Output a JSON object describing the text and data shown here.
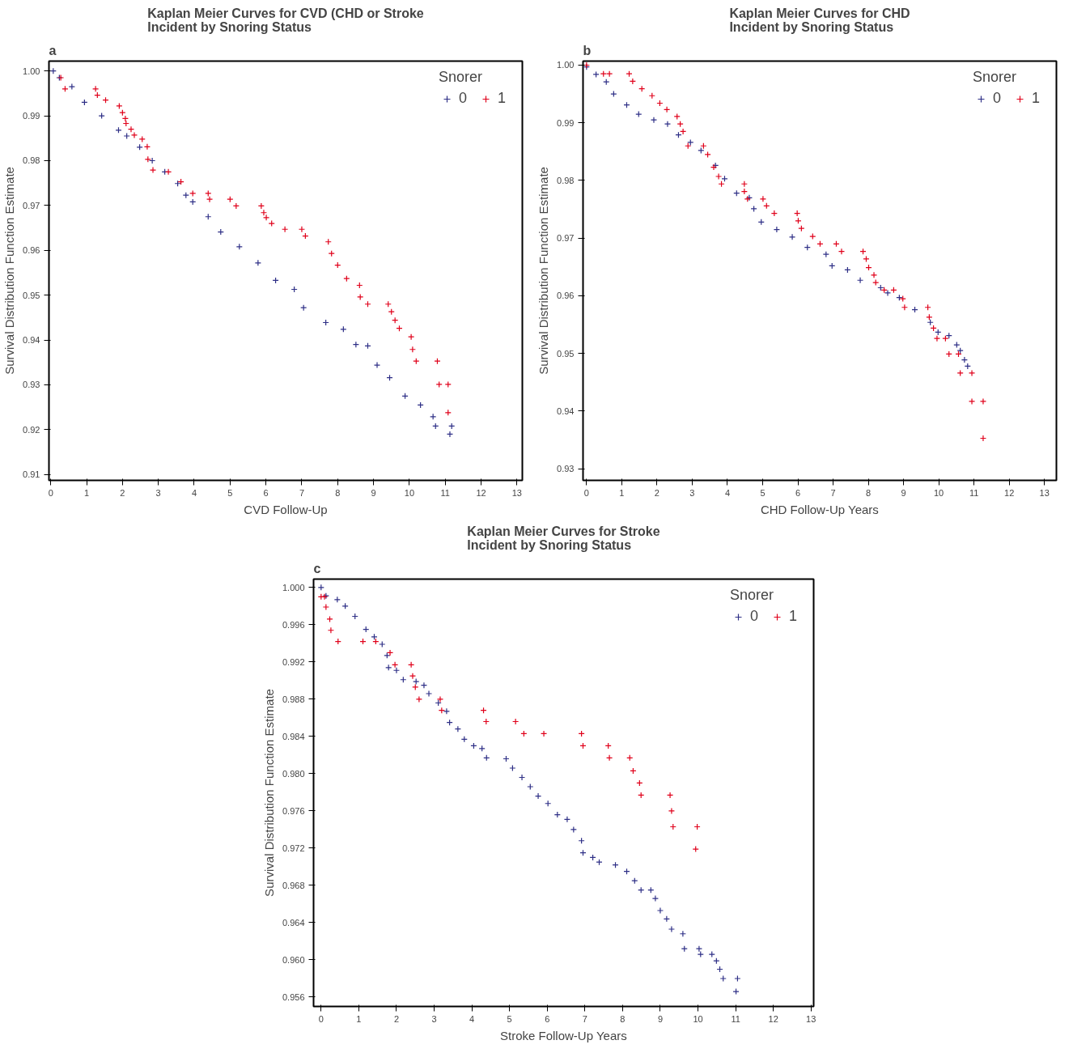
{
  "chart_data": [
    {
      "type": "scatter",
      "title": "Kaplan Meier Curves for CVD (CHD or Stroke\nIncident by Snoring Status",
      "annotations": [
        "a"
      ],
      "xlabel": "CVD Follow-Up",
      "ylabel": "Survival Distribution Function Estimate",
      "legend_title": "Snorer",
      "legend": "top right",
      "grid": false,
      "marker": "cross",
      "xlim": [
        -0.05,
        13.15
      ],
      "ylim": [
        0.9087,
        1.0022
      ],
      "xticks": [
        0,
        1,
        2,
        3,
        4,
        5,
        6,
        7,
        8,
        9,
        10,
        11,
        12,
        13
      ],
      "yticks": [
        {
          "value": 1.0,
          "label": "1.00"
        },
        0.99,
        0.98,
        0.97,
        0.96,
        0.95,
        0.94,
        0.93,
        0.92,
        0.91
      ],
      "series": [
        {
          "name": "0",
          "color": "#2e2f86",
          "x": [
            0.07,
            0.24,
            0.59,
            0.94,
            1.42,
            1.89,
            2.12,
            2.48,
            2.83,
            3.18,
            3.54,
            3.77,
            3.96,
            4.39,
            4.74,
            5.26,
            5.78,
            6.27,
            6.79,
            7.05,
            7.67,
            8.16,
            8.51,
            8.84,
            9.1,
            9.45,
            9.88,
            10.31,
            10.66,
            10.73,
            11.18,
            11.13
          ],
          "values": [
            1.0,
            0.9985,
            0.9965,
            0.993,
            0.99,
            0.9868,
            0.9855,
            0.983,
            0.98,
            0.9775,
            0.9749,
            0.9723,
            0.9708,
            0.9675,
            0.9641,
            0.9608,
            0.9572,
            0.9533,
            0.9513,
            0.9472,
            0.9439,
            0.9424,
            0.939,
            0.9387,
            0.9344,
            0.9316,
            0.9275,
            0.9255,
            0.9229,
            0.9208,
            0.9208,
            0.919
          ]
        },
        {
          "name": "1",
          "color": "#e0001a",
          "x": [
            0.28,
            0.4,
            1.25,
            1.3,
            1.53,
            1.91,
            2.0,
            2.08,
            2.1,
            2.24,
            2.33,
            2.55,
            2.69,
            2.71,
            2.85,
            3.28,
            3.63,
            3.96,
            4.39,
            4.43,
            5.0,
            5.17,
            5.87,
            5.94,
            6.01,
            6.16,
            6.53,
            7.0,
            7.1,
            7.74,
            7.83,
            8.0,
            8.25,
            8.61,
            8.63,
            8.84,
            9.41,
            9.5,
            9.6,
            9.72,
            10.05,
            10.09,
            10.19,
            10.78,
            10.83,
            11.08,
            11.08
          ],
          "values": [
            0.9985,
            0.996,
            0.996,
            0.9946,
            0.9935,
            0.9922,
            0.9907,
            0.9894,
            0.9883,
            0.987,
            0.9857,
            0.9848,
            0.9831,
            0.9803,
            0.9779,
            0.9775,
            0.9753,
            0.9727,
            0.9727,
            0.9714,
            0.9714,
            0.9699,
            0.9699,
            0.9684,
            0.9673,
            0.966,
            0.9647,
            0.9647,
            0.9632,
            0.9619,
            0.9593,
            0.9567,
            0.9537,
            0.9522,
            0.9496,
            0.948,
            0.948,
            0.9463,
            0.9444,
            0.9426,
            0.9407,
            0.9379,
            0.9353,
            0.9353,
            0.9301,
            0.9301,
            0.9238
          ]
        }
      ]
    },
    {
      "type": "scatter",
      "title": "Kaplan Meier Curves for CHD\nIncident by Snoring Status",
      "annotations": [
        "b"
      ],
      "xlabel": "CHD Follow-Up Years",
      "ylabel": "Survival Distribution Function Estimate",
      "legend_title": "Snorer",
      "legend": "top right",
      "grid": false,
      "marker": "cross",
      "xlim": [
        -0.1,
        13.34
      ],
      "ylim": [
        0.928,
        1.0007
      ],
      "xticks": [
        0,
        1,
        2,
        3,
        4,
        5,
        6,
        7,
        8,
        9,
        10,
        11,
        12,
        13
      ],
      "yticks": [
        {
          "value": 1.0,
          "label": "1.00"
        },
        0.99,
        0.98,
        0.97,
        0.96,
        0.95,
        0.94,
        0.93
      ],
      "series": [
        {
          "name": "0",
          "color": "#2e2f86",
          "x": [
            0.0,
            0.27,
            0.56,
            0.77,
            1.14,
            1.48,
            1.91,
            2.3,
            2.61,
            2.95,
            3.25,
            3.66,
            3.92,
            4.26,
            4.62,
            4.75,
            4.96,
            5.4,
            5.84,
            6.27,
            6.8,
            6.97,
            7.41,
            7.77,
            8.35,
            8.55,
            8.88,
            9.32,
            9.76,
            9.98,
            10.29,
            10.51,
            10.61,
            10.73,
            10.82
          ],
          "values": [
            0.9997,
            0.9984,
            0.9971,
            0.995,
            0.9931,
            0.9915,
            0.9905,
            0.9898,
            0.9879,
            0.9866,
            0.9852,
            0.9826,
            0.9803,
            0.9778,
            0.977,
            0.9751,
            0.9728,
            0.9715,
            0.9702,
            0.9684,
            0.9672,
            0.9652,
            0.9645,
            0.9627,
            0.9614,
            0.9605,
            0.9597,
            0.9576,
            0.9554,
            0.9537,
            0.9531,
            0.9515,
            0.9505,
            0.9489,
            0.9478
          ]
        },
        {
          "name": "1",
          "color": "#e0001a",
          "x": [
            0.0,
            0.48,
            0.65,
            1.21,
            1.31,
            1.57,
            1.86,
            2.08,
            2.28,
            2.57,
            2.66,
            2.74,
            2.88,
            3.32,
            3.44,
            3.61,
            3.75,
            3.83,
            4.48,
            4.48,
            4.57,
            5.01,
            5.11,
            5.33,
            5.98,
            6.01,
            6.1,
            6.42,
            6.63,
            7.09,
            7.24,
            7.85,
            7.94,
            8.01,
            8.16,
            8.21,
            8.45,
            8.72,
            8.98,
            9.03,
            9.69,
            9.73,
            9.85,
            9.95,
            10.19,
            10.29,
            10.56,
            10.61,
            10.94,
            10.94,
            11.26,
            11.26
          ],
          "values": [
            1.0,
            0.9985,
            0.9985,
            0.9985,
            0.9972,
            0.9959,
            0.9947,
            0.9934,
            0.9923,
            0.9911,
            0.9898,
            0.9885,
            0.986,
            0.986,
            0.9845,
            0.9823,
            0.9807,
            0.9794,
            0.9794,
            0.9781,
            0.9768,
            0.9768,
            0.9756,
            0.9743,
            0.9743,
            0.973,
            0.9717,
            0.9703,
            0.969,
            0.969,
            0.9677,
            0.9677,
            0.9664,
            0.9649,
            0.9636,
            0.9623,
            0.961,
            0.961,
            0.9595,
            0.958,
            0.958,
            0.9563,
            0.9544,
            0.9526,
            0.9526,
            0.9499,
            0.9499,
            0.9466,
            0.9466,
            0.9417,
            0.9417,
            0.9353
          ]
        }
      ]
    },
    {
      "type": "scatter",
      "title": "Kaplan Meier Curves for Stroke\nIncident by Snoring Status",
      "annotations": [
        "c"
      ],
      "xlabel": "Stroke Follow-Up Years",
      "ylabel": "Survival Distribution Function Estimate",
      "legend_title": "Snorer",
      "legend": "top right",
      "grid": false,
      "marker": "cross",
      "xlim": [
        -0.2,
        13.07
      ],
      "ylim": [
        0.955,
        1.0009
      ],
      "xticks": [
        0,
        1,
        2,
        3,
        4,
        5,
        6,
        7,
        8,
        9,
        10,
        11,
        12,
        13
      ],
      "yticks": [
        {
          "value": 1.0,
          "label": "1.000"
        },
        0.996,
        0.992,
        0.988,
        0.984,
        {
          "value": 0.98,
          "label": "0.980"
        },
        0.976,
        0.972,
        0.968,
        0.964,
        {
          "value": 0.96,
          "label": "0.960"
        },
        0.956
      ],
      "series": [
        {
          "name": "0",
          "color": "#2e2f86",
          "x": [
            0.0,
            0.13,
            0.43,
            0.64,
            0.9,
            1.19,
            1.41,
            1.62,
            1.75,
            1.79,
            2.0,
            2.18,
            2.52,
            2.73,
            2.86,
            3.11,
            3.33,
            3.41,
            3.63,
            3.8,
            4.05,
            4.27,
            4.39,
            4.91,
            5.08,
            5.33,
            5.55,
            5.76,
            6.02,
            6.27,
            6.53,
            6.7,
            6.91,
            6.95,
            7.21,
            7.38,
            7.81,
            8.11,
            8.32,
            8.49,
            8.75,
            8.87,
            9.0,
            9.17,
            9.3,
            9.6,
            9.64,
            10.03,
            10.07,
            10.37,
            10.49,
            10.58,
            10.67,
            11.05,
            11.01
          ],
          "values": [
            1.0,
            0.9991,
            0.9987,
            0.998,
            0.9969,
            0.9955,
            0.9947,
            0.9939,
            0.9927,
            0.9914,
            0.9911,
            0.9901,
            0.9899,
            0.9895,
            0.9886,
            0.9876,
            0.9867,
            0.9855,
            0.9848,
            0.9837,
            0.983,
            0.9827,
            0.9817,
            0.9816,
            0.9806,
            0.9796,
            0.9786,
            0.9776,
            0.9768,
            0.9756,
            0.9751,
            0.974,
            0.9728,
            0.9715,
            0.971,
            0.9705,
            0.9702,
            0.9695,
            0.9685,
            0.9675,
            0.9675,
            0.9666,
            0.9653,
            0.9644,
            0.9633,
            0.9628,
            0.9612,
            0.9612,
            0.9606,
            0.9606,
            0.9599,
            0.959,
            0.958,
            0.958,
            0.9566
          ]
        },
        {
          "name": "1",
          "color": "#e0001a",
          "x": [
            0.0,
            0.09,
            0.13,
            0.23,
            0.26,
            0.45,
            1.11,
            1.45,
            1.83,
            1.96,
            2.39,
            2.43,
            2.5,
            2.6,
            3.16,
            3.2,
            4.31,
            4.38,
            5.16,
            5.38,
            5.91,
            6.91,
            6.95,
            7.62,
            7.65,
            8.19,
            8.28,
            8.45,
            8.49,
            9.26,
            9.3,
            9.34,
            9.98,
            9.94
          ],
          "values": [
            0.999,
            0.999,
            0.9979,
            0.9966,
            0.9954,
            0.9942,
            0.9942,
            0.9942,
            0.993,
            0.9917,
            0.9917,
            0.9905,
            0.9893,
            0.988,
            0.988,
            0.9868,
            0.9868,
            0.9856,
            0.9856,
            0.9843,
            0.9843,
            0.9843,
            0.983,
            0.983,
            0.9817,
            0.9817,
            0.9803,
            0.979,
            0.9777,
            0.9777,
            0.976,
            0.9743,
            0.9743,
            0.9719
          ]
        }
      ]
    }
  ]
}
